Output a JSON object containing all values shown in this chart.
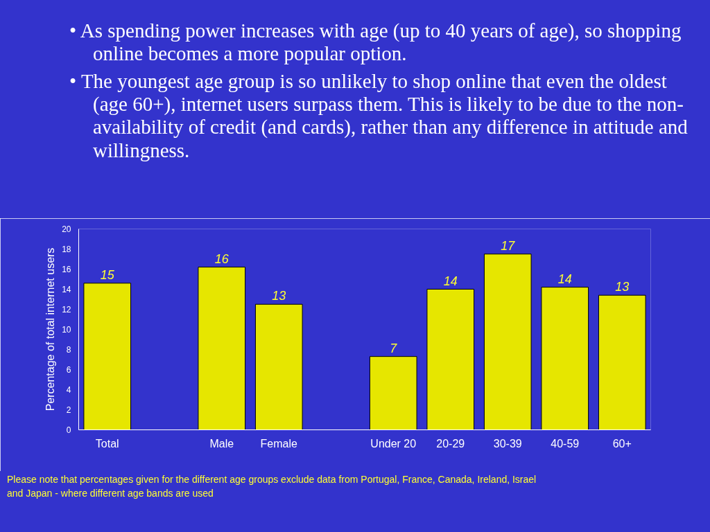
{
  "chart_data": {
    "type": "bar",
    "categories": [
      "Total",
      null,
      "Male",
      "Female",
      null,
      "Under 20",
      "20-29",
      "30-39",
      "40-59",
      "60+"
    ],
    "values": [
      14.6,
      null,
      16.2,
      12.5,
      null,
      7.3,
      14.0,
      17.5,
      14.2,
      13.4
    ],
    "value_labels": [
      "15",
      null,
      "16",
      "13",
      null,
      "7",
      "14",
      "17",
      "14",
      "13"
    ],
    "color": "#e6e600",
    "ylabel": "Percentage of total internet users",
    "ylim": [
      0,
      20
    ],
    "yticks": [
      0,
      2,
      4,
      6,
      8,
      10,
      12,
      14,
      16,
      18,
      20
    ],
    "grid": false,
    "annotations": [
      "• As spending power increases with age (up to 40 years of age), so shopping online becomes a more popular option.",
      "• The youngest age group is so unlikely to shop online that even the oldest (age 60+), internet users surpass them. This is likely to be due to the non-availability of credit (and cards), rather than any difference in attitude and willingness.",
      "Please note that percentages given for the different age groups exclude data from Portugal, France, Canada, Ireland, Israel and Japan - where different age bands are used"
    ]
  }
}
